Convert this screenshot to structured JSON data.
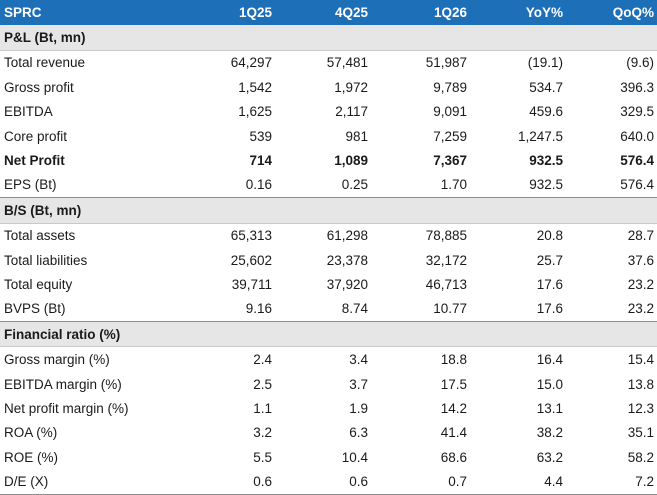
{
  "header": [
    "SPRC",
    "1Q25",
    "4Q25",
    "1Q26",
    "YoY%",
    "QoQ%"
  ],
  "sections": [
    {
      "title": "P&L (Bt, mn)",
      "rows": [
        {
          "label": "Total revenue",
          "values": [
            "64,297",
            "57,481",
            "51,987",
            "(19.1)",
            "(9.6)"
          ],
          "bold": false
        },
        {
          "label": "Gross profit",
          "values": [
            "1,542",
            "1,972",
            "9,789",
            "534.7",
            "396.3"
          ],
          "bold": false
        },
        {
          "label": "EBITDA",
          "values": [
            "1,625",
            "2,117",
            "9,091",
            "459.6",
            "329.5"
          ],
          "bold": false
        },
        {
          "label": "Core profit",
          "values": [
            "539",
            "981",
            "7,259",
            "1,247.5",
            "640.0"
          ],
          "bold": false
        },
        {
          "label": "Net Profit",
          "values": [
            "714",
            "1,089",
            "7,367",
            "932.5",
            "576.4"
          ],
          "bold": true
        },
        {
          "label": "EPS (Bt)",
          "values": [
            "0.16",
            "0.25",
            "1.70",
            "932.5",
            "576.4"
          ],
          "bold": false
        }
      ]
    },
    {
      "title": "B/S (Bt, mn)",
      "rows": [
        {
          "label": "Total assets",
          "values": [
            "65,313",
            "61,298",
            "78,885",
            "20.8",
            "28.7"
          ],
          "bold": false
        },
        {
          "label": "Total liabilities",
          "values": [
            "25,602",
            "23,378",
            "32,172",
            "25.7",
            "37.6"
          ],
          "bold": false
        },
        {
          "label": "Total equity",
          "values": [
            "39,711",
            "37,920",
            "46,713",
            "17.6",
            "23.2"
          ],
          "bold": false
        },
        {
          "label": "BVPS (Bt)",
          "values": [
            "9.16",
            "8.74",
            "10.77",
            "17.6",
            "23.2"
          ],
          "bold": false
        }
      ]
    },
    {
      "title": "Financial ratio (%)",
      "rows": [
        {
          "label": "Gross margin (%)",
          "values": [
            "2.4",
            "3.4",
            "18.8",
            "16.4",
            "15.4"
          ],
          "bold": false
        },
        {
          "label": "EBITDA margin (%)",
          "values": [
            "2.5",
            "3.7",
            "17.5",
            "15.0",
            "13.8"
          ],
          "bold": false
        },
        {
          "label": "Net profit margin (%)",
          "values": [
            "1.1",
            "1.9",
            "14.2",
            "13.1",
            "12.3"
          ],
          "bold": false
        },
        {
          "label": "ROA (%)",
          "values": [
            "3.2",
            "6.3",
            "41.4",
            "38.2",
            "35.1"
          ],
          "bold": false
        },
        {
          "label": "ROE (%)",
          "values": [
            "5.5",
            "10.4",
            "68.6",
            "63.2",
            "58.2"
          ],
          "bold": false
        },
        {
          "label": "D/E (X)",
          "values": [
            "0.6",
            "0.6",
            "0.7",
            "4.4",
            "7.2"
          ],
          "bold": false
        }
      ]
    }
  ],
  "colors": {
    "header_bg": "#1d6fb8",
    "header_text": "#ffffff",
    "section_bg": "#e6e6e6"
  }
}
